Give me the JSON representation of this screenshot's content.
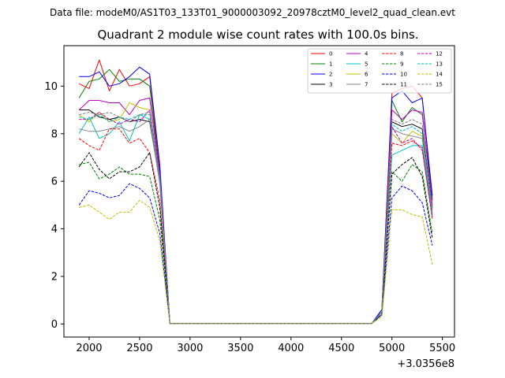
{
  "header": {
    "suptitle": "Data file: modeM0/AS1T03_133T01_9000003092_20978cztM0_level2_quad_clean.evt"
  },
  "chart_data": {
    "type": "line",
    "title": "Quadrant 2 module wise count rates with 100.0s bins.",
    "xlabel": "",
    "ylabel": "",
    "x_offset_label": "+3.0356e8",
    "xlim": [
      1750,
      5620
    ],
    "ylim": [
      -0.55,
      11.7
    ],
    "grid": false,
    "legend_location": "top-right",
    "x_ticks": [
      2000,
      2500,
      3000,
      3500,
      4000,
      4500,
      5000,
      5500
    ],
    "y_ticks": [
      0,
      2,
      4,
      6,
      8,
      10
    ],
    "x": [
      1900,
      2000,
      2100,
      2200,
      2300,
      2400,
      2500,
      2600,
      2700,
      2800,
      2900,
      3000,
      3100,
      3200,
      3300,
      3400,
      3500,
      3600,
      3700,
      3800,
      3900,
      4000,
      4100,
      4200,
      4300,
      4400,
      4500,
      4600,
      4700,
      4800,
      4900,
      5000,
      5100,
      5200,
      5300,
      5400
    ],
    "series": [
      {
        "name": "0",
        "color": "#ff0000",
        "dash": "solid",
        "values": [
          10.1,
          9.9,
          11.1,
          9.8,
          10.7,
          10.0,
          10.1,
          10.4,
          6.4,
          0.02,
          0.02,
          0.02,
          0.02,
          0.02,
          0.02,
          0.02,
          0.02,
          0.02,
          0.02,
          0.02,
          0.02,
          0.02,
          0.02,
          0.02,
          0.02,
          0.02,
          0.02,
          0.02,
          0.02,
          0.02,
          0.6,
          9.7,
          9.9,
          10.0,
          9.5,
          5.2
        ]
      },
      {
        "name": "1",
        "color": "#008000",
        "dash": "solid",
        "values": [
          9.5,
          10.2,
          10.3,
          10.7,
          10.2,
          10.3,
          10.3,
          10.0,
          6.3,
          0.02,
          0.02,
          0.02,
          0.02,
          0.02,
          0.02,
          0.02,
          0.02,
          0.02,
          0.02,
          0.02,
          0.02,
          0.02,
          0.02,
          0.02,
          0.02,
          0.02,
          0.02,
          0.02,
          0.02,
          0.02,
          0.5,
          9.4,
          8.5,
          9.1,
          8.8,
          5.3
        ]
      },
      {
        "name": "2",
        "color": "#0000ff",
        "dash": "solid",
        "values": [
          10.4,
          10.4,
          10.6,
          10.0,
          10.1,
          10.4,
          10.8,
          10.5,
          6.7,
          0.02,
          0.02,
          0.02,
          0.02,
          0.02,
          0.02,
          0.02,
          0.02,
          0.02,
          0.02,
          0.02,
          0.02,
          0.02,
          0.02,
          0.02,
          0.02,
          0.02,
          0.02,
          0.02,
          0.02,
          0.02,
          0.6,
          9.5,
          9.8,
          9.3,
          9.5,
          5.4
        ]
      },
      {
        "name": "3",
        "color": "#000000",
        "dash": "solid",
        "values": [
          9.0,
          9.0,
          8.7,
          8.6,
          8.7,
          8.5,
          8.6,
          8.5,
          6.0,
          0.02,
          0.02,
          0.02,
          0.02,
          0.02,
          0.02,
          0.02,
          0.02,
          0.02,
          0.02,
          0.02,
          0.02,
          0.02,
          0.02,
          0.02,
          0.02,
          0.02,
          0.02,
          0.02,
          0.02,
          0.02,
          0.5,
          8.5,
          8.3,
          8.4,
          8.2,
          4.9
        ]
      },
      {
        "name": "4",
        "color": "#bf00bf",
        "dash": "solid",
        "values": [
          9.0,
          9.4,
          9.4,
          9.3,
          9.3,
          8.8,
          9.4,
          9.5,
          6.3,
          0.02,
          0.02,
          0.02,
          0.02,
          0.02,
          0.02,
          0.02,
          0.02,
          0.02,
          0.02,
          0.02,
          0.02,
          0.02,
          0.02,
          0.02,
          0.02,
          0.02,
          0.02,
          0.02,
          0.02,
          0.02,
          0.5,
          9.0,
          8.6,
          9.0,
          8.9,
          5.0
        ]
      },
      {
        "name": "5",
        "color": "#00bfbf",
        "dash": "solid",
        "values": [
          8.0,
          8.7,
          7.8,
          8.0,
          8.5,
          7.7,
          8.8,
          8.6,
          6.0,
          0.02,
          0.02,
          0.02,
          0.02,
          0.02,
          0.02,
          0.02,
          0.02,
          0.02,
          0.02,
          0.02,
          0.02,
          0.02,
          0.02,
          0.02,
          0.02,
          0.02,
          0.02,
          0.02,
          0.02,
          0.02,
          0.5,
          7.1,
          7.3,
          7.5,
          7.5,
          4.6
        ]
      },
      {
        "name": "6",
        "color": "#bfbf00",
        "dash": "solid",
        "values": [
          8.8,
          8.5,
          8.9,
          8.5,
          8.6,
          9.3,
          9.1,
          9.0,
          6.1,
          0.02,
          0.02,
          0.02,
          0.02,
          0.02,
          0.02,
          0.02,
          0.02,
          0.02,
          0.02,
          0.02,
          0.02,
          0.02,
          0.02,
          0.02,
          0.02,
          0.02,
          0.02,
          0.02,
          0.02,
          0.02,
          0.5,
          8.0,
          7.6,
          8.1,
          7.9,
          4.7
        ]
      },
      {
        "name": "7",
        "color": "#808080",
        "dash": "solid",
        "values": [
          8.2,
          8.1,
          8.1,
          8.2,
          8.3,
          8.1,
          8.3,
          8.6,
          5.9,
          0.02,
          0.02,
          0.02,
          0.02,
          0.02,
          0.02,
          0.02,
          0.02,
          0.02,
          0.02,
          0.02,
          0.02,
          0.02,
          0.02,
          0.02,
          0.02,
          0.02,
          0.02,
          0.02,
          0.02,
          0.02,
          0.5,
          8.2,
          8.0,
          7.9,
          7.8,
          4.8
        ]
      },
      {
        "name": "8",
        "color": "#ff0000",
        "dash": "dashed",
        "values": [
          7.8,
          7.5,
          7.3,
          8.2,
          8.2,
          7.6,
          7.8,
          7.2,
          5.2,
          0.02,
          0.02,
          0.02,
          0.02,
          0.02,
          0.02,
          0.02,
          0.02,
          0.02,
          0.02,
          0.02,
          0.02,
          0.02,
          0.02,
          0.02,
          0.02,
          0.02,
          0.02,
          0.02,
          0.02,
          0.02,
          0.5,
          7.6,
          7.5,
          7.7,
          7.4,
          4.4
        ]
      },
      {
        "name": "9",
        "color": "#008000",
        "dash": "dashed",
        "values": [
          6.7,
          6.8,
          6.1,
          6.3,
          6.6,
          6.3,
          6.3,
          6.2,
          4.4,
          0.02,
          0.02,
          0.02,
          0.02,
          0.02,
          0.02,
          0.02,
          0.02,
          0.02,
          0.02,
          0.02,
          0.02,
          0.02,
          0.02,
          0.02,
          0.02,
          0.02,
          0.02,
          0.02,
          0.02,
          0.02,
          0.4,
          6.4,
          6.0,
          6.7,
          6.4,
          3.8
        ]
      },
      {
        "name": "10",
        "color": "#0000ff",
        "dash": "dashed",
        "values": [
          5.0,
          5.6,
          5.5,
          5.3,
          5.4,
          5.9,
          5.7,
          5.3,
          3.8,
          0.02,
          0.02,
          0.02,
          0.02,
          0.02,
          0.02,
          0.02,
          0.02,
          0.02,
          0.02,
          0.02,
          0.02,
          0.02,
          0.02,
          0.02,
          0.02,
          0.02,
          0.02,
          0.02,
          0.02,
          0.02,
          0.4,
          5.3,
          5.8,
          5.6,
          5.1,
          3.3
        ]
      },
      {
        "name": "11",
        "color": "#000000",
        "dash": "dashed",
        "values": [
          6.6,
          7.2,
          6.5,
          6.1,
          6.4,
          6.4,
          6.6,
          7.2,
          4.9,
          0.02,
          0.02,
          0.02,
          0.02,
          0.02,
          0.02,
          0.02,
          0.02,
          0.02,
          0.02,
          0.02,
          0.02,
          0.02,
          0.02,
          0.02,
          0.02,
          0.02,
          0.02,
          0.02,
          0.02,
          0.02,
          0.4,
          6.3,
          6.7,
          7.0,
          6.2,
          3.6
        ]
      },
      {
        "name": "12",
        "color": "#bf00bf",
        "dash": "dashed",
        "values": [
          8.6,
          8.6,
          8.9,
          8.6,
          8.4,
          8.6,
          8.5,
          9.0,
          6.2,
          0.02,
          0.02,
          0.02,
          0.02,
          0.02,
          0.02,
          0.02,
          0.02,
          0.02,
          0.02,
          0.02,
          0.02,
          0.02,
          0.02,
          0.02,
          0.02,
          0.02,
          0.02,
          0.02,
          0.02,
          0.02,
          0.5,
          8.3,
          7.6,
          7.8,
          7.3,
          4.5
        ]
      },
      {
        "name": "13",
        "color": "#00bfbf",
        "dash": "dashed",
        "values": [
          8.7,
          8.6,
          8.8,
          8.5,
          8.7,
          8.6,
          8.8,
          8.8,
          6.1,
          0.02,
          0.02,
          0.02,
          0.02,
          0.02,
          0.02,
          0.02,
          0.02,
          0.02,
          0.02,
          0.02,
          0.02,
          0.02,
          0.02,
          0.02,
          0.02,
          0.02,
          0.02,
          0.02,
          0.02,
          0.02,
          0.5,
          8.4,
          8.1,
          8.3,
          8.0,
          4.6
        ]
      },
      {
        "name": "14",
        "color": "#bfbf00",
        "dash": "dashed",
        "values": [
          4.9,
          5.0,
          4.7,
          4.4,
          4.7,
          4.7,
          5.2,
          4.9,
          3.5,
          0.02,
          0.02,
          0.02,
          0.02,
          0.02,
          0.02,
          0.02,
          0.02,
          0.02,
          0.02,
          0.02,
          0.02,
          0.02,
          0.02,
          0.02,
          0.02,
          0.02,
          0.02,
          0.02,
          0.02,
          0.02,
          0.3,
          4.8,
          4.8,
          4.6,
          4.5,
          2.5
        ]
      },
      {
        "name": "15",
        "color": "#808080",
        "dash": "dashed",
        "values": [
          8.8,
          8.9,
          8.8,
          8.9,
          8.7,
          8.5,
          8.8,
          8.9,
          6.1,
          0.02,
          0.02,
          0.02,
          0.02,
          0.02,
          0.02,
          0.02,
          0.02,
          0.02,
          0.02,
          0.02,
          0.02,
          0.02,
          0.02,
          0.02,
          0.02,
          0.02,
          0.02,
          0.02,
          0.02,
          0.02,
          0.5,
          8.6,
          8.4,
          8.6,
          8.4,
          4.8
        ]
      }
    ]
  }
}
